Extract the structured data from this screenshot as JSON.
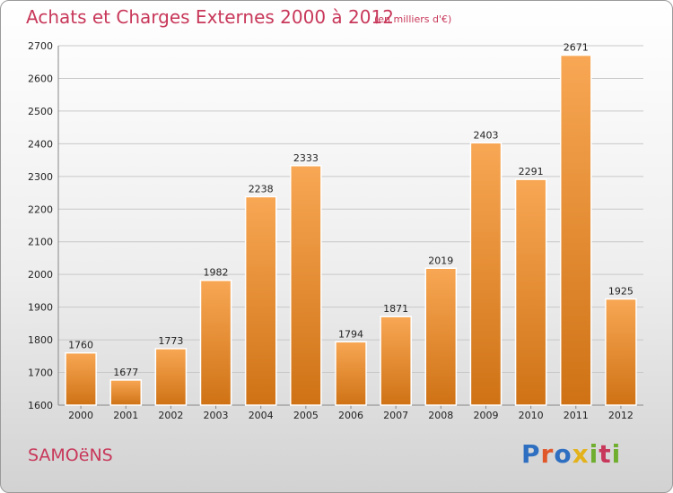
{
  "header": {
    "title": "Achats et Charges Externes 2000 à 2012",
    "subtitle": "(en milliers d'€)"
  },
  "footer": {
    "commune": "SAMOëNS",
    "brand": "Proxiti"
  },
  "colors": {
    "title": "#c8385a",
    "bar_light": "#f8a754",
    "bar_dark": "#cf7215",
    "grid": "#c8c8c8"
  },
  "chart_data": {
    "type": "bar",
    "title": "Achats et Charges Externes 2000 à 2012",
    "subtitle": "(en milliers d'€)",
    "categories": [
      "2000",
      "2001",
      "2002",
      "2003",
      "2004",
      "2005",
      "2006",
      "2007",
      "2008",
      "2009",
      "2010",
      "2011",
      "2012"
    ],
    "values": [
      1760,
      1677,
      1773,
      1982,
      2238,
      2333,
      1794,
      1871,
      2019,
      2403,
      2291,
      2671,
      1925
    ],
    "ylim": [
      1600,
      2700
    ],
    "yticks": [
      1600,
      1700,
      1800,
      1900,
      2000,
      2100,
      2200,
      2300,
      2400,
      2500,
      2600,
      2700
    ],
    "grid": true,
    "legend": "none",
    "xlabel": "",
    "ylabel": ""
  }
}
